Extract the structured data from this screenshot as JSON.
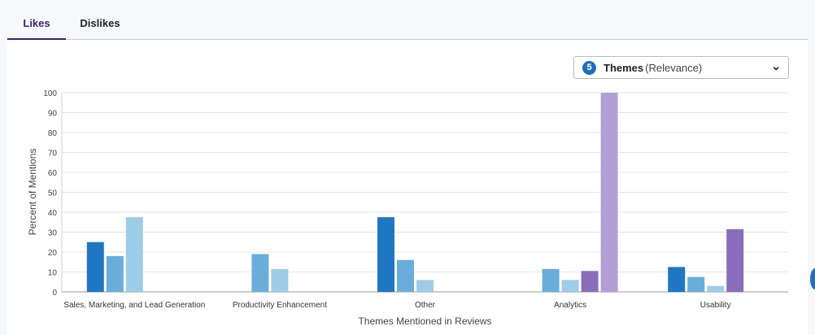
{
  "tabs": [
    {
      "label": "Likes",
      "active": true
    },
    {
      "label": "Dislikes",
      "active": false
    }
  ],
  "dropdown": {
    "count": "5",
    "label": "Themes",
    "sublabel": "(Relevance)",
    "icon": "chevron-down-icon"
  },
  "chart_data": {
    "type": "bar",
    "categories": [
      "Sales, Marketing, and Lead Generation",
      "Productivity Enhancement",
      "Other",
      "Analytics",
      "Usability"
    ],
    "series": [
      {
        "color": "#1f77c4",
        "values": [
          25,
          null,
          37.5,
          null,
          12.5
        ]
      },
      {
        "color": "#6aaddb",
        "values": [
          18,
          19,
          16,
          11.5,
          7.5
        ]
      },
      {
        "color": "#9ecbe8",
        "values": [
          37.5,
          11.5,
          6,
          6,
          3
        ]
      },
      {
        "color": "#8a6dba",
        "values": [
          null,
          null,
          null,
          10.5,
          31.5
        ]
      },
      {
        "color": "#b39ed6",
        "values": [
          null,
          null,
          null,
          100,
          null
        ]
      }
    ],
    "xlabel": "Themes Mentioned in Reviews",
    "ylabel": "Percent of Mentions",
    "ylim": [
      0,
      100
    ],
    "yticks": [
      "0",
      "10",
      "20",
      "30",
      "40",
      "50",
      "60",
      "70",
      "80",
      "90",
      "100"
    ],
    "grid": true
  }
}
